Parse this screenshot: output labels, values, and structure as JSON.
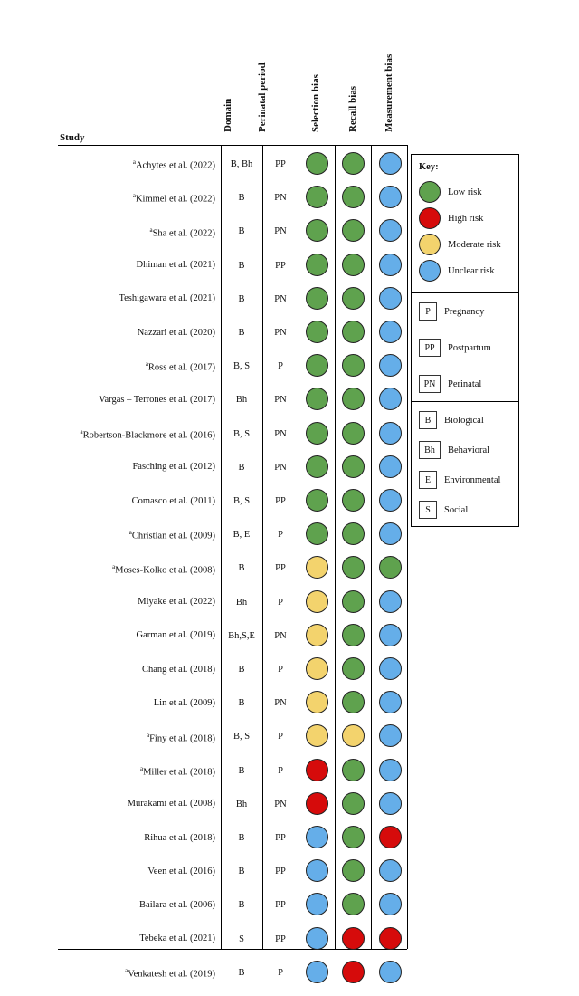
{
  "headers": {
    "study": "Study",
    "domain": "Domain",
    "period": "Perinatal period",
    "selection": "Selection bias",
    "recall": "Recall bias",
    "measurement": "Measurement bias"
  },
  "colors": {
    "green": "#5fa24e",
    "red": "#d60b0b",
    "yellow": "#f3d36d",
    "blue": "#65aee9"
  },
  "rows": [
    {
      "sup": "a",
      "study": "Achytes et al. (2022)",
      "domain": "B, Bh",
      "period": "PP",
      "selection": "green",
      "recall": "green",
      "measurement": "blue"
    },
    {
      "sup": "a",
      "study": "Kimmel et al. (2022)",
      "domain": "B",
      "period": "PN",
      "selection": "green",
      "recall": "green",
      "measurement": "blue"
    },
    {
      "sup": "a",
      "study": "Sha et al. (2022)",
      "domain": "B",
      "period": "PN",
      "selection": "green",
      "recall": "green",
      "measurement": "blue"
    },
    {
      "sup": "",
      "study": "Dhiman et al. (2021)",
      "domain": "B",
      "period": "PP",
      "selection": "green",
      "recall": "green",
      "measurement": "blue"
    },
    {
      "sup": "",
      "study": "Teshigawara et al. (2021)",
      "domain": "B",
      "period": "PN",
      "selection": "green",
      "recall": "green",
      "measurement": "blue"
    },
    {
      "sup": "",
      "study": "Nazzari et al. (2020)",
      "domain": "B",
      "period": "PN",
      "selection": "green",
      "recall": "green",
      "measurement": "blue"
    },
    {
      "sup": "a",
      "study": "Ross et al. (2017)",
      "domain": "B, S",
      "period": "P",
      "selection": "green",
      "recall": "green",
      "measurement": "blue"
    },
    {
      "sup": "",
      "study": "Vargas – Terrones et al. (2017)",
      "domain": "Bh",
      "period": "PN",
      "selection": "green",
      "recall": "green",
      "measurement": "blue"
    },
    {
      "sup": "a",
      "study": "Robertson-Blackmore et al. (2016)",
      "domain": "B, S",
      "period": "PN",
      "selection": "green",
      "recall": "green",
      "measurement": "blue"
    },
    {
      "sup": "",
      "study": "Fasching et al. (2012)",
      "domain": "B",
      "period": "PN",
      "selection": "green",
      "recall": "green",
      "measurement": "blue"
    },
    {
      "sup": "",
      "study": "Comasco et al. (2011)",
      "domain": "B, S",
      "period": "PP",
      "selection": "green",
      "recall": "green",
      "measurement": "blue"
    },
    {
      "sup": "a",
      "study": "Christian et al. (2009)",
      "domain": "B, E",
      "period": "P",
      "selection": "green",
      "recall": "green",
      "measurement": "blue"
    },
    {
      "sup": "a",
      "study": "Moses-Kolko et al. (2008)",
      "domain": "B",
      "period": "PP",
      "selection": "yellow",
      "recall": "green",
      "measurement": "green"
    },
    {
      "sup": "",
      "study": "Miyake et al. (2022)",
      "domain": "Bh",
      "period": "P",
      "selection": "yellow",
      "recall": "green",
      "measurement": "blue"
    },
    {
      "sup": "",
      "study": "Garman et al. (2019)",
      "domain": "Bh,S,E",
      "period": "PN",
      "selection": "yellow",
      "recall": "green",
      "measurement": "blue"
    },
    {
      "sup": "",
      "study": "Chang et al. (2018)",
      "domain": "B",
      "period": "P",
      "selection": "yellow",
      "recall": "green",
      "measurement": "blue"
    },
    {
      "sup": "",
      "study": "Lin et al. (2009)",
      "domain": "B",
      "period": "PN",
      "selection": "yellow",
      "recall": "green",
      "measurement": "blue"
    },
    {
      "sup": "a",
      "study": "Finy et al. (2018)",
      "domain": "B, S",
      "period": "P",
      "selection": "yellow",
      "recall": "yellow",
      "measurement": "blue"
    },
    {
      "sup": "a",
      "study": "Miller et al. (2018)",
      "domain": "B",
      "period": "P",
      "selection": "red",
      "recall": "green",
      "measurement": "blue"
    },
    {
      "sup": "",
      "study": "Murakami et al. (2008)",
      "domain": "Bh",
      "period": "PN",
      "selection": "red",
      "recall": "green",
      "measurement": "blue"
    },
    {
      "sup": "",
      "study": "Rihua et al. (2018)",
      "domain": "B",
      "period": "PP",
      "selection": "blue",
      "recall": "green",
      "measurement": "red"
    },
    {
      "sup": "",
      "study": "Veen et al. (2016)",
      "domain": "B",
      "period": "PP",
      "selection": "blue",
      "recall": "green",
      "measurement": "blue"
    },
    {
      "sup": "",
      "study": "Bailara et al. (2006)",
      "domain": "B",
      "period": "PP",
      "selection": "blue",
      "recall": "green",
      "measurement": "blue"
    },
    {
      "sup": "",
      "study": "Tebeka et al. (2021)",
      "domain": "S",
      "period": "PP",
      "selection": "blue",
      "recall": "red",
      "measurement": "red"
    },
    {
      "sup": "a",
      "study": "Venkatesh et al. (2019)",
      "domain": "B",
      "period": "P",
      "selection": "blue",
      "recall": "red",
      "measurement": "blue"
    }
  ],
  "key": {
    "title": "Key:",
    "risk": [
      {
        "color": "green",
        "label": "Low risk"
      },
      {
        "color": "red",
        "label": "High risk"
      },
      {
        "color": "yellow",
        "label": "Moderate risk"
      },
      {
        "color": "blue",
        "label": "Unclear risk"
      }
    ],
    "period": [
      {
        "code": "P",
        "label": "Pregnancy"
      },
      {
        "code": "PP",
        "label": "Postpartum"
      },
      {
        "code": "PN",
        "label": "Perinatal"
      }
    ],
    "domain": [
      {
        "code": "B",
        "label": "Biological"
      },
      {
        "code": "Bh",
        "label": "Behavioral"
      },
      {
        "code": "E",
        "label": "Environmental"
      },
      {
        "code": "S",
        "label": "Social"
      }
    ]
  }
}
